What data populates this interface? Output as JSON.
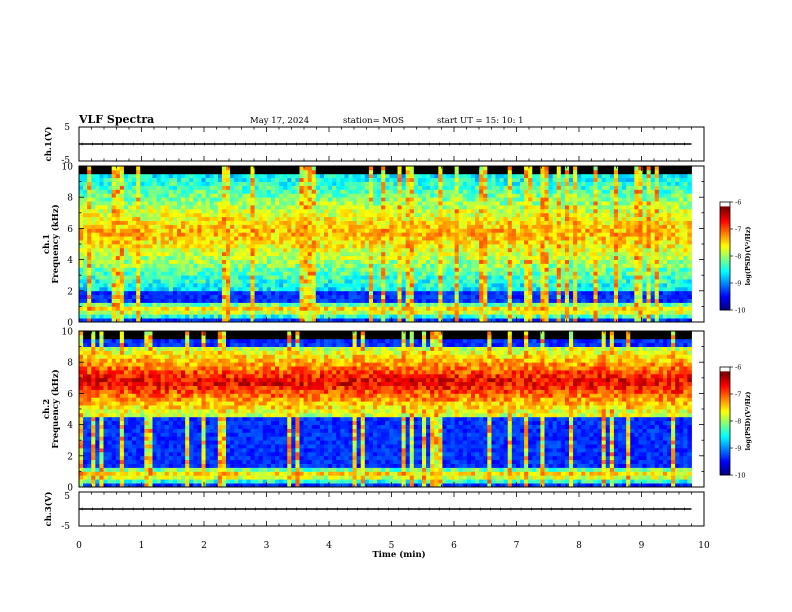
{
  "header": {
    "title": "VLF Spectra",
    "date": "May 17, 2024",
    "station": "station= MOS",
    "start": "start  UT =   15: 10: 1"
  },
  "colors": {
    "spectrum_scale": [
      "#000000",
      "#00008b",
      "#0000ff",
      "#00bfff",
      "#00ffb0",
      "#00ff00",
      "#7fff00",
      "#ffff00",
      "#ff7f00",
      "#ff0000",
      "#ffffff"
    ]
  },
  "chart_data": [
    {
      "type": "line",
      "id": "ch1_waveform",
      "ylabel": "ch.1(V)",
      "ylim": [
        -5,
        5
      ],
      "y_ticks": [
        "5",
        "-5"
      ],
      "series": [
        {
          "x": [
            0,
            9.8
          ],
          "y": [
            0,
            0
          ]
        }
      ]
    },
    {
      "type": "heatmap",
      "id": "ch1_spectrogram",
      "ylabel_top": "ch.1",
      "ylabel": "Frequency (kHz)",
      "xlim": [
        0,
        10
      ],
      "ylim": [
        0,
        10
      ],
      "y_ticks": [
        "0",
        "2",
        "4",
        "6",
        "8",
        "10"
      ],
      "data_extent_x": [
        0,
        9.8
      ],
      "dominant_bands_khz": [
        [
          0.3,
          1.3
        ],
        [
          2.0,
          9.5
        ]
      ],
      "colorbar": {
        "label": "log(PSD)(V²/Hz)",
        "range": [
          -10,
          -6
        ],
        "ticks": [
          "-6",
          "-7",
          "-8",
          "-9",
          "-10"
        ]
      }
    },
    {
      "type": "heatmap",
      "id": "ch2_spectrogram",
      "ylabel_top": "ch.2",
      "ylabel": "Frequency (kHz)",
      "xlim": [
        0,
        10
      ],
      "ylim": [
        0,
        10
      ],
      "y_ticks": [
        "0",
        "2",
        "4",
        "6",
        "8",
        "10"
      ],
      "data_extent_x": [
        0,
        9.8
      ],
      "dominant_bands_khz": [
        [
          0.3,
          1.3
        ],
        [
          4.5,
          9.0
        ]
      ],
      "colorbar": {
        "label": "log(PSD)(V²/Hz)",
        "range": [
          -10,
          -6
        ],
        "ticks": [
          "-6",
          "-7",
          "-8",
          "-9",
          "-10"
        ]
      }
    },
    {
      "type": "line",
      "id": "ch3_waveform",
      "ylabel": "ch.3(V)",
      "ylim": [
        -5,
        5
      ],
      "y_ticks": [
        "5",
        "-5"
      ],
      "series": [
        {
          "x": [
            0,
            9.8
          ],
          "y": [
            0,
            0
          ]
        }
      ]
    }
  ],
  "x_axis": {
    "label": "Time  (min)",
    "ticks": [
      "0",
      "1",
      "2",
      "3",
      "4",
      "5",
      "6",
      "7",
      "8",
      "9",
      "10"
    ]
  }
}
